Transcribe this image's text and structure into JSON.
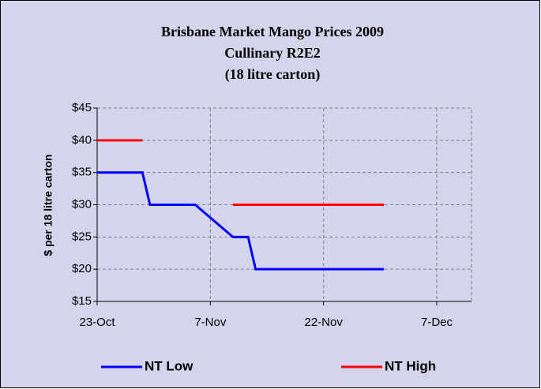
{
  "chart_data": {
    "type": "line",
    "title": [
      "Brisbane Market Mango Prices 2009",
      "Cullinary R2E2",
      "(18 litre carton)"
    ],
    "y_label": "$ per 18 litre carton",
    "x": [
      "23-Oct",
      "29-Oct",
      "30-Oct",
      "5-Nov",
      "10-Nov",
      "12-Nov",
      "13-Nov",
      "30-Nov"
    ],
    "series": [
      {
        "name": "NT Low",
        "color": "#0000ff",
        "values": [
          35,
          35,
          30,
          30,
          25,
          25,
          20,
          20
        ]
      },
      {
        "name": "NT High",
        "color": "#ff0000",
        "values": [
          40,
          40,
          null,
          null,
          30,
          30,
          30,
          30
        ]
      }
    ],
    "xlim": [
      "23-Oct",
      "7-Dec"
    ],
    "xticks": [
      "23-Oct",
      "7-Nov",
      "22-Nov",
      "7-Dec"
    ],
    "ylim": [
      15,
      45
    ],
    "yticks": [
      {
        "value": 15,
        "label": "$15"
      },
      {
        "value": 20,
        "label": "$20"
      },
      {
        "value": 25,
        "label": "$25"
      },
      {
        "value": 30,
        "label": "$30"
      },
      {
        "value": 35,
        "label": "$35"
      },
      {
        "value": 40,
        "label": "$40"
      },
      {
        "value": 45,
        "label": "$45"
      }
    ],
    "grid": true,
    "legend": "bottom"
  }
}
